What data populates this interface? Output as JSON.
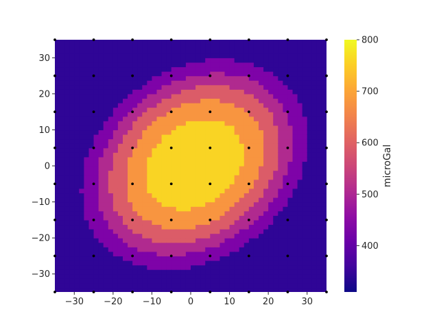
{
  "chart_data": {
    "type": "contour",
    "x_ticks": [
      -30,
      -20,
      -10,
      0,
      10,
      20,
      30
    ],
    "y_ticks": [
      -30,
      -20,
      -10,
      0,
      10,
      20,
      30
    ],
    "xlim": [
      -35,
      35
    ],
    "ylim": [
      -35,
      35
    ],
    "grid": false,
    "colorbar": {
      "label": "microGal",
      "ticks": [
        400,
        500,
        600,
        700,
        800
      ],
      "range": [
        310,
        800
      ],
      "colormap": "plasma",
      "position": "right"
    },
    "levels": [
      {
        "min": 310,
        "max": 400,
        "color": "#2f0596"
      },
      {
        "min": 400,
        "max": 500,
        "color": "#7e03a8"
      },
      {
        "min": 500,
        "max": 575,
        "color": "#b02a8f"
      },
      {
        "min": 575,
        "max": 650,
        "color": "#db5c68"
      },
      {
        "min": 650,
        "max": 725,
        "color": "#f89540"
      },
      {
        "min": 725,
        "max": 800,
        "color": "#f9d424"
      }
    ],
    "sample_points": {
      "x": [
        -35,
        -25,
        -15,
        -5,
        5,
        15,
        25,
        35
      ],
      "y": [
        -35,
        -25,
        -15,
        -5,
        5,
        15,
        25,
        35
      ],
      "marker": "black dot"
    }
  }
}
